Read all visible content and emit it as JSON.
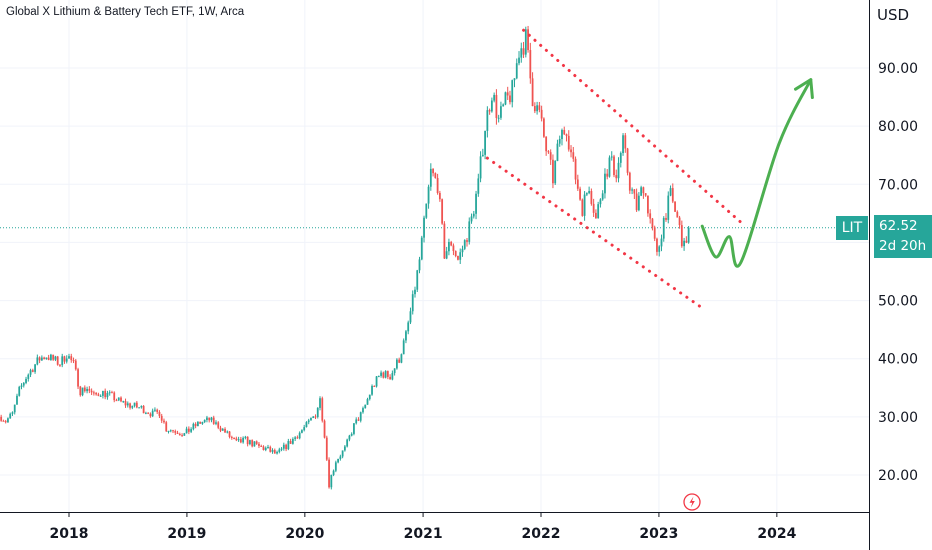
{
  "header": {
    "title": "Global X Lithium & Battery Tech ETF, 1W, Arca"
  },
  "price_axis": {
    "currency": "USD"
  },
  "last_price": {
    "ticker": "LIT",
    "value": "62.52",
    "countdown": "2d 20h"
  },
  "colors": {
    "up": "#26a69a",
    "down": "#ef5350",
    "channel": "#f23645",
    "projection": "#4caf50",
    "grid": "#f0f3fa",
    "axis_line": "#131722",
    "price_line": "#26a69a",
    "flash_icon": "#f23645"
  },
  "icons": {
    "event_marker": "lightning-circle-icon"
  },
  "chart_data": {
    "type": "candlestick",
    "interval": "1W",
    "x_axis": {
      "type": "time",
      "ticks": [
        "2018",
        "2019",
        "2020",
        "2021",
        "2022",
        "2023",
        "2024"
      ]
    },
    "y_axis": {
      "range": [
        13.4,
        99
      ],
      "ticks": [
        20,
        30,
        40,
        50,
        60,
        70,
        80,
        90
      ],
      "tick_labels": [
        "20.00",
        "30.00",
        "40.00",
        "50.00",
        "60.00",
        "70.00",
        "80.00",
        "90.00"
      ],
      "position": "right"
    },
    "grid": true,
    "last_value": 62.52,
    "price_path": [
      [
        "2017-06-05",
        30.0
      ],
      [
        "2017-06-19",
        29.3
      ],
      [
        "2017-07-10",
        30.5
      ],
      [
        "2017-07-31",
        34.5
      ],
      [
        "2017-08-21",
        36.8
      ],
      [
        "2017-09-11",
        38.5
      ],
      [
        "2017-10-02",
        40.0
      ],
      [
        "2017-10-23",
        40.5
      ],
      [
        "2017-11-13",
        39.8
      ],
      [
        "2017-12-04",
        39.2
      ],
      [
        "2017-12-25",
        40.8
      ],
      [
        "2018-01-15",
        39.0
      ],
      [
        "2018-02-05",
        34.5
      ],
      [
        "2018-02-26",
        35.0
      ],
      [
        "2018-03-19",
        33.5
      ],
      [
        "2018-04-09",
        34.3
      ],
      [
        "2018-05-14",
        33.5
      ],
      [
        "2018-06-11",
        32.5
      ],
      [
        "2018-07-09",
        32.0
      ],
      [
        "2018-08-13",
        31.5
      ],
      [
        "2018-09-17",
        30.5
      ],
      [
        "2018-10-08",
        30.8
      ],
      [
        "2018-10-29",
        28.0
      ],
      [
        "2018-12-03",
        27.5
      ],
      [
        "2018-12-24",
        27.0
      ],
      [
        "2019-01-14",
        28.0
      ],
      [
        "2019-02-11",
        29.0
      ],
      [
        "2019-03-11",
        29.5
      ],
      [
        "2019-04-08",
        28.5
      ],
      [
        "2019-05-06",
        27.0
      ],
      [
        "2019-06-03",
        25.5
      ],
      [
        "2019-07-01",
        26.0
      ],
      [
        "2019-08-05",
        25.0
      ],
      [
        "2019-09-02",
        24.5
      ],
      [
        "2019-10-07",
        23.5
      ],
      [
        "2019-11-04",
        25.0
      ],
      [
        "2019-12-02",
        26.5
      ],
      [
        "2020-01-06",
        28.5
      ],
      [
        "2020-02-03",
        30.5
      ],
      [
        "2020-02-17",
        33.0
      ],
      [
        "2020-03-02",
        27.0
      ],
      [
        "2020-03-16",
        18.5
      ],
      [
        "2020-04-06",
        22.5
      ],
      [
        "2020-05-04",
        24.5
      ],
      [
        "2020-06-01",
        28.5
      ],
      [
        "2020-06-29",
        31.0
      ],
      [
        "2020-07-27",
        35.0
      ],
      [
        "2020-08-24",
        37.5
      ],
      [
        "2020-09-21",
        37.0
      ],
      [
        "2020-10-19",
        40.0
      ],
      [
        "2020-11-09",
        44.0
      ],
      [
        "2020-11-30",
        50.0
      ],
      [
        "2020-12-21",
        57.0
      ],
      [
        "2021-01-11",
        66.0
      ],
      [
        "2021-01-25",
        72.0
      ],
      [
        "2021-02-15",
        70.0
      ],
      [
        "2021-03-08",
        58.0
      ],
      [
        "2021-03-29",
        60.0
      ],
      [
        "2021-04-19",
        57.0
      ],
      [
        "2021-05-10",
        60.0
      ],
      [
        "2021-05-31",
        64.0
      ],
      [
        "2021-06-21",
        70.0
      ],
      [
        "2021-07-12",
        80.0
      ],
      [
        "2021-08-02",
        86.0
      ],
      [
        "2021-08-23",
        81.0
      ],
      [
        "2021-09-13",
        84.0
      ],
      [
        "2021-10-04",
        86.0
      ],
      [
        "2021-10-25",
        93.0
      ],
      [
        "2021-11-15",
        95.0
      ],
      [
        "2021-12-06",
        85.0
      ],
      [
        "2021-12-27",
        82.0
      ],
      [
        "2022-01-17",
        76.0
      ],
      [
        "2022-02-07",
        71.0
      ],
      [
        "2022-02-28",
        78.0
      ],
      [
        "2022-03-21",
        80.0
      ],
      [
        "2022-04-11",
        73.0
      ],
      [
        "2022-05-09",
        66.0
      ],
      [
        "2022-05-30",
        70.0
      ],
      [
        "2022-06-20",
        64.0
      ],
      [
        "2022-07-11",
        70.0
      ],
      [
        "2022-08-01",
        74.0
      ],
      [
        "2022-08-22",
        72.0
      ],
      [
        "2022-09-12",
        77.0
      ],
      [
        "2022-10-03",
        70.0
      ],
      [
        "2022-10-24",
        66.0
      ],
      [
        "2022-11-14",
        70.0
      ],
      [
        "2022-12-05",
        64.0
      ],
      [
        "2022-12-26",
        57.5
      ],
      [
        "2023-01-16",
        64.0
      ],
      [
        "2023-02-06",
        68.0
      ],
      [
        "2023-02-27",
        64.0
      ],
      [
        "2023-03-20",
        59.0
      ],
      [
        "2023-04-03",
        62.52
      ]
    ],
    "annotations": [
      {
        "type": "channel_line",
        "style": "dotted",
        "from": [
          "2021-11-08",
          96.5
        ],
        "to": [
          "2023-09-11",
          63.5
        ]
      },
      {
        "type": "channel_line",
        "style": "dotted",
        "from": [
          "2021-07-19",
          74.5
        ],
        "to": [
          "2023-05-08",
          49.0
        ]
      },
      {
        "type": "projection_arrow",
        "points": [
          [
            "2023-05-15",
            62.8
          ],
          [
            "2023-06-26",
            57.5
          ],
          [
            "2023-08-07",
            61.0
          ],
          [
            "2023-09-11",
            56.5
          ],
          [
            "2024-01-08",
            77.0
          ],
          [
            "2024-04-15",
            88.0
          ]
        ]
      }
    ]
  }
}
